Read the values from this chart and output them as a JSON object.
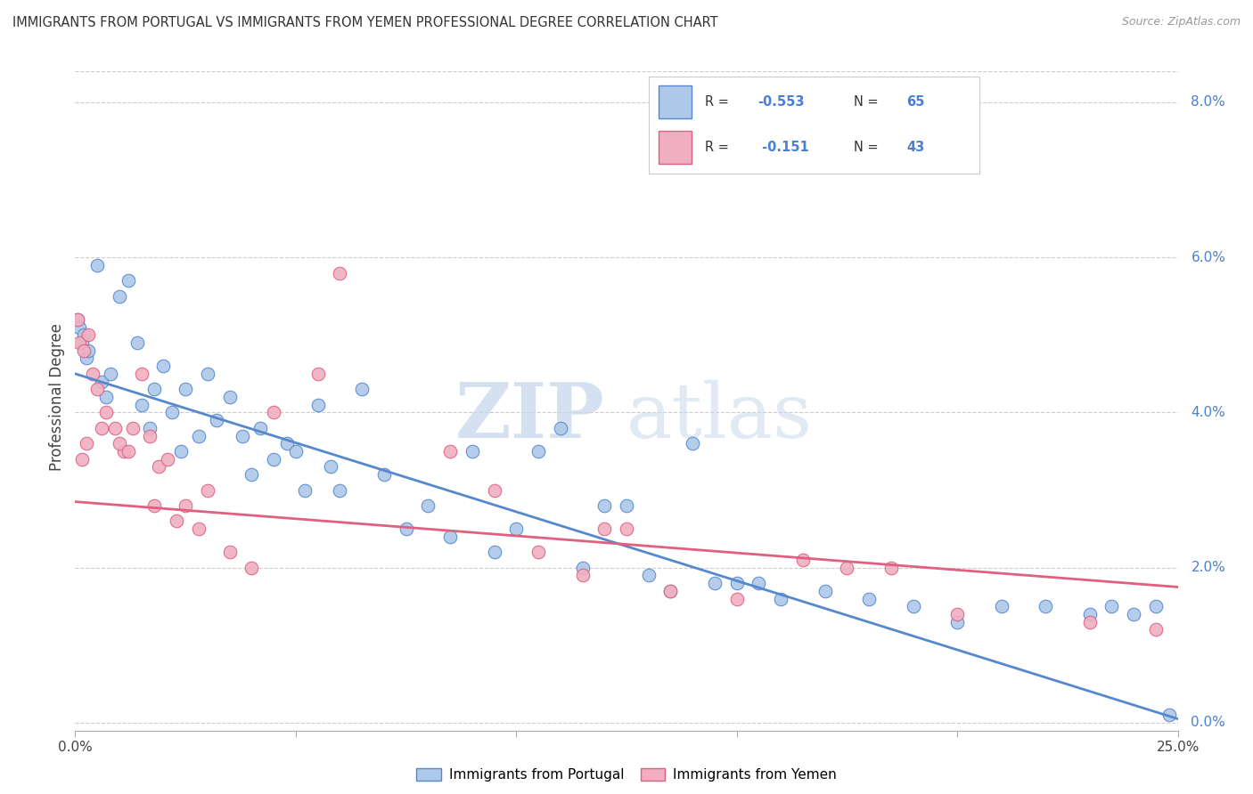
{
  "title": "IMMIGRANTS FROM PORTUGAL VS IMMIGRANTS FROM YEMEN PROFESSIONAL DEGREE CORRELATION CHART",
  "source": "Source: ZipAtlas.com",
  "ylabel": "Professional Degree",
  "right_yticks": [
    "0.0%",
    "2.0%",
    "4.0%",
    "6.0%",
    "8.0%"
  ],
  "right_yvalues": [
    0.0,
    2.0,
    4.0,
    6.0,
    8.0
  ],
  "xlim": [
    0.0,
    25.0
  ],
  "ylim": [
    -0.1,
    8.5
  ],
  "color_portugal": "#adc8e8",
  "color_yemen": "#f0afc0",
  "color_line_portugal": "#5588cc",
  "color_line_yemen": "#e06080",
  "watermark_zip": "ZIP",
  "watermark_atlas": "atlas",
  "portugal_scatter_x": [
    0.05,
    0.1,
    0.15,
    0.2,
    0.25,
    0.3,
    0.5,
    0.6,
    0.7,
    0.8,
    1.0,
    1.2,
    1.4,
    1.5,
    1.7,
    1.8,
    2.0,
    2.2,
    2.4,
    2.5,
    2.8,
    3.0,
    3.2,
    3.5,
    3.8,
    4.0,
    4.2,
    4.5,
    4.8,
    5.0,
    5.2,
    5.5,
    5.8,
    6.0,
    6.5,
    7.0,
    7.5,
    8.0,
    8.5,
    9.0,
    9.5,
    10.0,
    10.5,
    11.0,
    11.5,
    12.0,
    12.5,
    13.0,
    13.5,
    14.0,
    14.5,
    15.0,
    15.5,
    16.0,
    17.0,
    18.0,
    19.0,
    20.0,
    21.0,
    22.0,
    23.0,
    23.5,
    24.0,
    24.5,
    24.8
  ],
  "portugal_scatter_y": [
    5.2,
    5.1,
    4.9,
    5.0,
    4.7,
    4.8,
    5.9,
    4.4,
    4.2,
    4.5,
    5.5,
    5.7,
    4.9,
    4.1,
    3.8,
    4.3,
    4.6,
    4.0,
    3.5,
    4.3,
    3.7,
    4.5,
    3.9,
    4.2,
    3.7,
    3.2,
    3.8,
    3.4,
    3.6,
    3.5,
    3.0,
    4.1,
    3.3,
    3.0,
    4.3,
    3.2,
    2.5,
    2.8,
    2.4,
    3.5,
    2.2,
    2.5,
    3.5,
    3.8,
    2.0,
    2.8,
    2.8,
    1.9,
    1.7,
    3.6,
    1.8,
    1.8,
    1.8,
    1.6,
    1.7,
    1.6,
    1.5,
    1.3,
    1.5,
    1.5,
    1.4,
    1.5,
    1.4,
    1.5,
    0.1
  ],
  "yemen_scatter_x": [
    0.05,
    0.1,
    0.2,
    0.3,
    0.4,
    0.5,
    0.7,
    0.9,
    1.1,
    1.3,
    1.5,
    1.7,
    1.9,
    2.1,
    2.3,
    2.5,
    2.8,
    3.0,
    3.5,
    4.0,
    4.5,
    5.5,
    6.0,
    8.5,
    9.5,
    10.5,
    11.5,
    12.0,
    12.5,
    13.5,
    15.0,
    16.5,
    17.5,
    18.5,
    20.0,
    23.0,
    24.5,
    0.15,
    0.25,
    0.6,
    1.0,
    1.2,
    1.8
  ],
  "yemen_scatter_y": [
    5.2,
    4.9,
    4.8,
    5.0,
    4.5,
    4.3,
    4.0,
    3.8,
    3.5,
    3.8,
    4.5,
    3.7,
    3.3,
    3.4,
    2.6,
    2.8,
    2.5,
    3.0,
    2.2,
    2.0,
    4.0,
    4.5,
    5.8,
    3.5,
    3.0,
    2.2,
    1.9,
    2.5,
    2.5,
    1.7,
    1.6,
    2.1,
    2.0,
    2.0,
    1.4,
    1.3,
    1.2,
    3.4,
    3.6,
    3.8,
    3.6,
    3.5,
    2.8
  ],
  "portugal_trend_x": [
    0.0,
    25.0
  ],
  "portugal_trend_y": [
    4.5,
    0.05
  ],
  "yemen_trend_x": [
    0.0,
    25.0
  ],
  "yemen_trend_y": [
    2.85,
    1.75
  ],
  "background_color": "#ffffff",
  "grid_color": "#cccccc",
  "legend_items": [
    {
      "label": "R = -0.553   N = 65",
      "color_fill": "#adc8e8",
      "color_edge": "#5588cc"
    },
    {
      "label": "R =  -0.151   N = 43",
      "color_fill": "#f0afc0",
      "color_edge": "#e06080"
    }
  ],
  "bottom_legend": [
    {
      "label": "Immigrants from Portugal",
      "color_fill": "#adc8e8",
      "color_edge": "#5588cc"
    },
    {
      "label": "Immigrants from Yemen",
      "color_fill": "#f0afc0",
      "color_edge": "#e06080"
    }
  ]
}
